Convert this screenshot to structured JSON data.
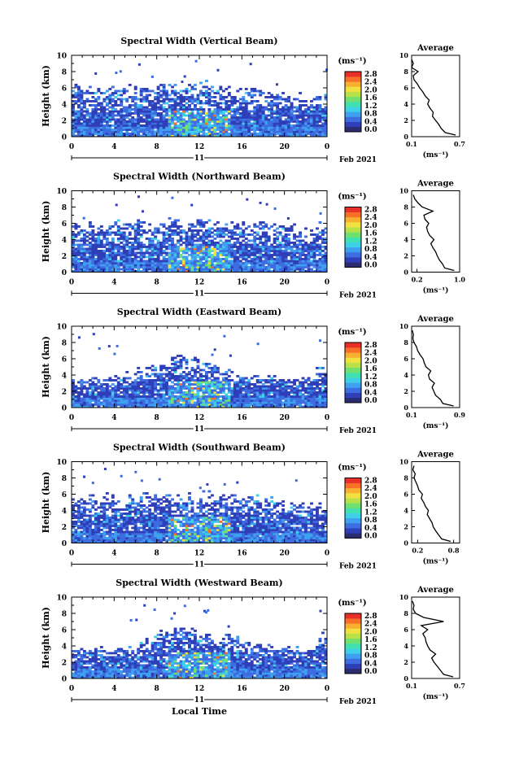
{
  "figure": {
    "x_axis_label": "Local Time",
    "date_label": "Feb 2021",
    "day_label": "11",
    "unit_label": "(ms⁻¹)",
    "avg_title": "Average",
    "y_axis_label": "Height (km)"
  },
  "colorbar": {
    "ticks": [
      "2.8",
      "2.4",
      "2.0",
      "1.6",
      "1.2",
      "0.8",
      "0.4",
      "0.0"
    ],
    "colors": [
      "#2b2b70",
      "#2f3fb8",
      "#3d6de0",
      "#3fa0f0",
      "#3fd0e8",
      "#40e0b0",
      "#70e070",
      "#b8e048",
      "#f0e040",
      "#f8b030",
      "#f87028",
      "#e83028"
    ]
  },
  "chart_data": [
    {
      "type": "heatmap",
      "title": "Spectral Width (Vertical Beam)",
      "x_ticks": [
        "0",
        "4",
        "8",
        "12",
        "16",
        "20",
        "0"
      ],
      "xlim": [
        0,
        24
      ],
      "y_ticks": [
        "0",
        "2",
        "4",
        "6",
        "8",
        "10"
      ],
      "ylim": [
        0,
        10
      ],
      "ylabel": "Height (km)",
      "zlim": [
        0.0,
        2.8
      ],
      "top_km": [
        6.3,
        6.1,
        6.0,
        6.2,
        5.9,
        6.1,
        6.3,
        6.4,
        6.5,
        6.3,
        6.2,
        6.4,
        6.6,
        6.3,
        6.2,
        6.1,
        6.0,
        5.8,
        5.6,
        5.4,
        5.2,
        5.0,
        4.9,
        5.2
      ],
      "average": {
        "title": "Average",
        "xlabel": "(ms⁻¹)",
        "x_ticks": [
          "0.1",
          "0.7"
        ],
        "xlim": [
          0.1,
          0.7
        ],
        "height_km": [
          0.2,
          0.5,
          1,
          1.5,
          2,
          2.5,
          3,
          3.5,
          4,
          4.5,
          5,
          5.5,
          6,
          6.5,
          7,
          7.5,
          8,
          8.5,
          9,
          9.5
        ],
        "width": [
          0.65,
          0.52,
          0.47,
          0.44,
          0.4,
          0.36,
          0.37,
          0.33,
          0.3,
          0.32,
          0.27,
          0.24,
          0.2,
          0.17,
          0.13,
          0.12,
          0.18,
          0.1,
          0.12,
          0.1
        ]
      }
    },
    {
      "type": "heatmap",
      "title": "Spectral Width (Northward Beam)",
      "x_ticks": [
        "0",
        "4",
        "8",
        "12",
        "16",
        "20",
        "0"
      ],
      "xlim": [
        0,
        24
      ],
      "y_ticks": [
        "0",
        "2",
        "4",
        "6",
        "8",
        "10"
      ],
      "ylim": [
        0,
        10
      ],
      "ylabel": "Height (km)",
      "zlim": [
        0.0,
        2.8
      ],
      "top_km": [
        6.1,
        6.2,
        6.0,
        6.1,
        6.3,
        6.2,
        6.4,
        6.3,
        6.2,
        6.5,
        6.4,
        6.3,
        6.5,
        6.3,
        6.2,
        6.1,
        6.0,
        6.2,
        5.9,
        5.8,
        5.6,
        5.4,
        5.2,
        6.0
      ],
      "average": {
        "title": "Average",
        "xlabel": "(ms⁻¹)",
        "x_ticks": [
          "0.2",
          "1.0"
        ],
        "xlim": [
          0.1,
          1.0
        ],
        "height_km": [
          0.2,
          0.5,
          1,
          1.5,
          2,
          2.5,
          3,
          3.5,
          4,
          4.5,
          5,
          5.5,
          6,
          6.5,
          7,
          7.5,
          8,
          8.5,
          9,
          9.5
        ],
        "width": [
          0.9,
          0.72,
          0.68,
          0.62,
          0.58,
          0.55,
          0.5,
          0.46,
          0.52,
          0.44,
          0.4,
          0.38,
          0.42,
          0.35,
          0.33,
          0.5,
          0.3,
          0.22,
          0.16,
          0.13
        ]
      }
    },
    {
      "type": "heatmap",
      "title": "Spectral Width (Eastward Beam)",
      "x_ticks": [
        "0",
        "4",
        "8",
        "12",
        "16",
        "20",
        "0"
      ],
      "xlim": [
        0,
        24
      ],
      "y_ticks": [
        "0",
        "2",
        "4",
        "6",
        "8",
        "10"
      ],
      "ylim": [
        0,
        10
      ],
      "ylabel": "Height (km)",
      "zlim": [
        0.0,
        2.8
      ],
      "top_km": [
        3.6,
        3.5,
        3.7,
        3.6,
        3.9,
        4.4,
        4.6,
        5.0,
        5.4,
        6.2,
        6.4,
        6.1,
        5.5,
        5.0,
        4.6,
        4.3,
        4.1,
        4.0,
        3.9,
        3.8,
        3.8,
        3.9,
        3.7,
        4.8
      ],
      "average": {
        "title": "Average",
        "xlabel": "(ms⁻¹)",
        "x_ticks": [
          "0.1",
          "0.9"
        ],
        "xlim": [
          0.1,
          0.9
        ],
        "height_km": [
          0.2,
          0.5,
          1,
          1.5,
          2,
          2.5,
          3,
          3.5,
          4,
          4.5,
          5,
          5.5,
          6,
          6.5,
          7,
          7.5,
          8,
          8.5,
          9,
          9.5
        ],
        "width": [
          0.8,
          0.62,
          0.58,
          0.5,
          0.47,
          0.44,
          0.48,
          0.4,
          0.38,
          0.42,
          0.34,
          0.31,
          0.29,
          0.24,
          0.2,
          0.18,
          0.14,
          0.12,
          0.13,
          0.11
        ]
      }
    },
    {
      "type": "heatmap",
      "title": "Spectral Width (Southward Beam)",
      "x_ticks": [
        "0",
        "4",
        "8",
        "12",
        "16",
        "20",
        "0"
      ],
      "xlim": [
        0,
        24
      ],
      "y_ticks": [
        "0",
        "2",
        "4",
        "6",
        "8",
        "10"
      ],
      "ylim": [
        0,
        10
      ],
      "ylabel": "Height (km)",
      "zlim": [
        0.0,
        2.8
      ],
      "top_km": [
        5.8,
        5.7,
        5.6,
        5.8,
        5.5,
        5.7,
        5.9,
        6.0,
        6.1,
        6.0,
        5.9,
        6.1,
        6.2,
        6.0,
        5.9,
        5.8,
        5.7,
        5.6,
        5.5,
        5.3,
        5.1,
        5.0,
        4.8,
        5.0
      ],
      "average": {
        "title": "Average",
        "xlabel": "(ms⁻¹)",
        "x_ticks": [
          "0.2",
          "0.8"
        ],
        "xlim": [
          0.1,
          0.9
        ],
        "height_km": [
          0.2,
          0.5,
          1,
          1.5,
          2,
          2.5,
          3,
          3.5,
          4,
          4.5,
          5,
          5.5,
          6,
          6.5,
          7,
          7.5,
          8,
          8.5,
          9,
          9.5
        ],
        "width": [
          0.75,
          0.6,
          0.55,
          0.5,
          0.46,
          0.44,
          0.4,
          0.36,
          0.38,
          0.33,
          0.3,
          0.26,
          0.28,
          0.22,
          0.2,
          0.17,
          0.14,
          0.16,
          0.12,
          0.14
        ]
      }
    },
    {
      "type": "heatmap",
      "title": "Spectral Width (Westward Beam)",
      "x_ticks": [
        "0",
        "4",
        "8",
        "12",
        "16",
        "20",
        "0"
      ],
      "xlim": [
        0,
        24
      ],
      "y_ticks": [
        "0",
        "2",
        "4",
        "6",
        "8",
        "10"
      ],
      "ylim": [
        0,
        10
      ],
      "ylabel": "Height (km)",
      "zlim": [
        0.0,
        2.8
      ],
      "top_km": [
        3.6,
        3.5,
        3.7,
        3.6,
        3.8,
        3.9,
        4.3,
        4.9,
        5.6,
        6.2,
        6.4,
        6.0,
        5.4,
        5.2,
        5.6,
        5.0,
        4.5,
        4.2,
        4.0,
        3.9,
        3.8,
        3.7,
        3.6,
        5.5
      ],
      "average": {
        "title": "Average",
        "xlabel": "(ms⁻¹)",
        "x_ticks": [
          "0.1",
          "0.7"
        ],
        "xlim": [
          0.1,
          0.7
        ],
        "height_km": [
          0.2,
          0.5,
          1,
          1.5,
          2,
          2.5,
          3,
          3.5,
          4,
          4.5,
          5,
          5.5,
          6,
          6.5,
          7,
          7.5,
          8,
          8.5,
          9,
          9.5
        ],
        "width": [
          0.62,
          0.5,
          0.46,
          0.42,
          0.38,
          0.35,
          0.4,
          0.33,
          0.3,
          0.28,
          0.27,
          0.24,
          0.3,
          0.22,
          0.5,
          0.25,
          0.15,
          0.12,
          0.13,
          0.11
        ]
      }
    }
  ]
}
